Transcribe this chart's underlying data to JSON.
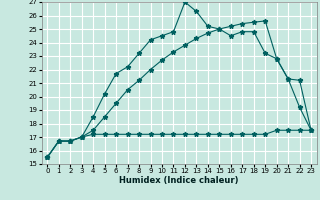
{
  "xlabel": "Humidex (Indice chaleur)",
  "xlim": [
    -0.5,
    23.5
  ],
  "ylim": [
    15,
    27
  ],
  "xticks": [
    0,
    1,
    2,
    3,
    4,
    5,
    6,
    7,
    8,
    9,
    10,
    11,
    12,
    13,
    14,
    15,
    16,
    17,
    18,
    19,
    20,
    21,
    22,
    23
  ],
  "yticks": [
    15,
    16,
    17,
    18,
    19,
    20,
    21,
    22,
    23,
    24,
    25,
    26,
    27
  ],
  "bg_color": "#c8e8e0",
  "grid_color": "#ffffff",
  "line_color": "#006060",
  "line1_x": [
    0,
    1,
    2,
    3,
    4,
    5,
    6,
    7,
    8,
    9,
    10,
    11,
    12,
    13,
    14,
    15,
    16,
    17,
    18,
    19,
    20,
    21,
    22,
    23
  ],
  "line1_y": [
    15.5,
    16.7,
    16.7,
    17.0,
    17.2,
    17.2,
    17.2,
    17.2,
    17.2,
    17.2,
    17.2,
    17.2,
    17.2,
    17.2,
    17.2,
    17.2,
    17.2,
    17.2,
    17.2,
    17.2,
    17.5,
    17.5,
    17.5,
    17.5
  ],
  "line2_x": [
    0,
    1,
    2,
    3,
    4,
    5,
    6,
    7,
    8,
    9,
    10,
    11,
    12,
    13,
    14,
    15,
    16,
    17,
    18,
    19,
    20,
    21,
    22,
    23
  ],
  "line2_y": [
    15.5,
    16.7,
    16.7,
    17.0,
    17.5,
    18.5,
    19.5,
    20.5,
    21.2,
    22.0,
    22.7,
    23.3,
    23.8,
    24.3,
    24.7,
    25.0,
    25.2,
    25.4,
    25.5,
    25.6,
    22.8,
    21.3,
    21.2,
    17.5
  ],
  "line3_x": [
    0,
    1,
    2,
    3,
    4,
    5,
    6,
    7,
    8,
    9,
    10,
    11,
    12,
    13,
    14,
    15,
    16,
    17,
    18,
    19,
    20,
    21,
    22,
    23
  ],
  "line3_y": [
    15.5,
    16.7,
    16.7,
    17.0,
    18.5,
    20.2,
    21.7,
    22.2,
    23.2,
    24.2,
    24.5,
    24.8,
    27.0,
    26.3,
    25.2,
    25.0,
    24.5,
    24.8,
    24.8,
    23.2,
    22.8,
    21.3,
    19.2,
    17.5
  ]
}
